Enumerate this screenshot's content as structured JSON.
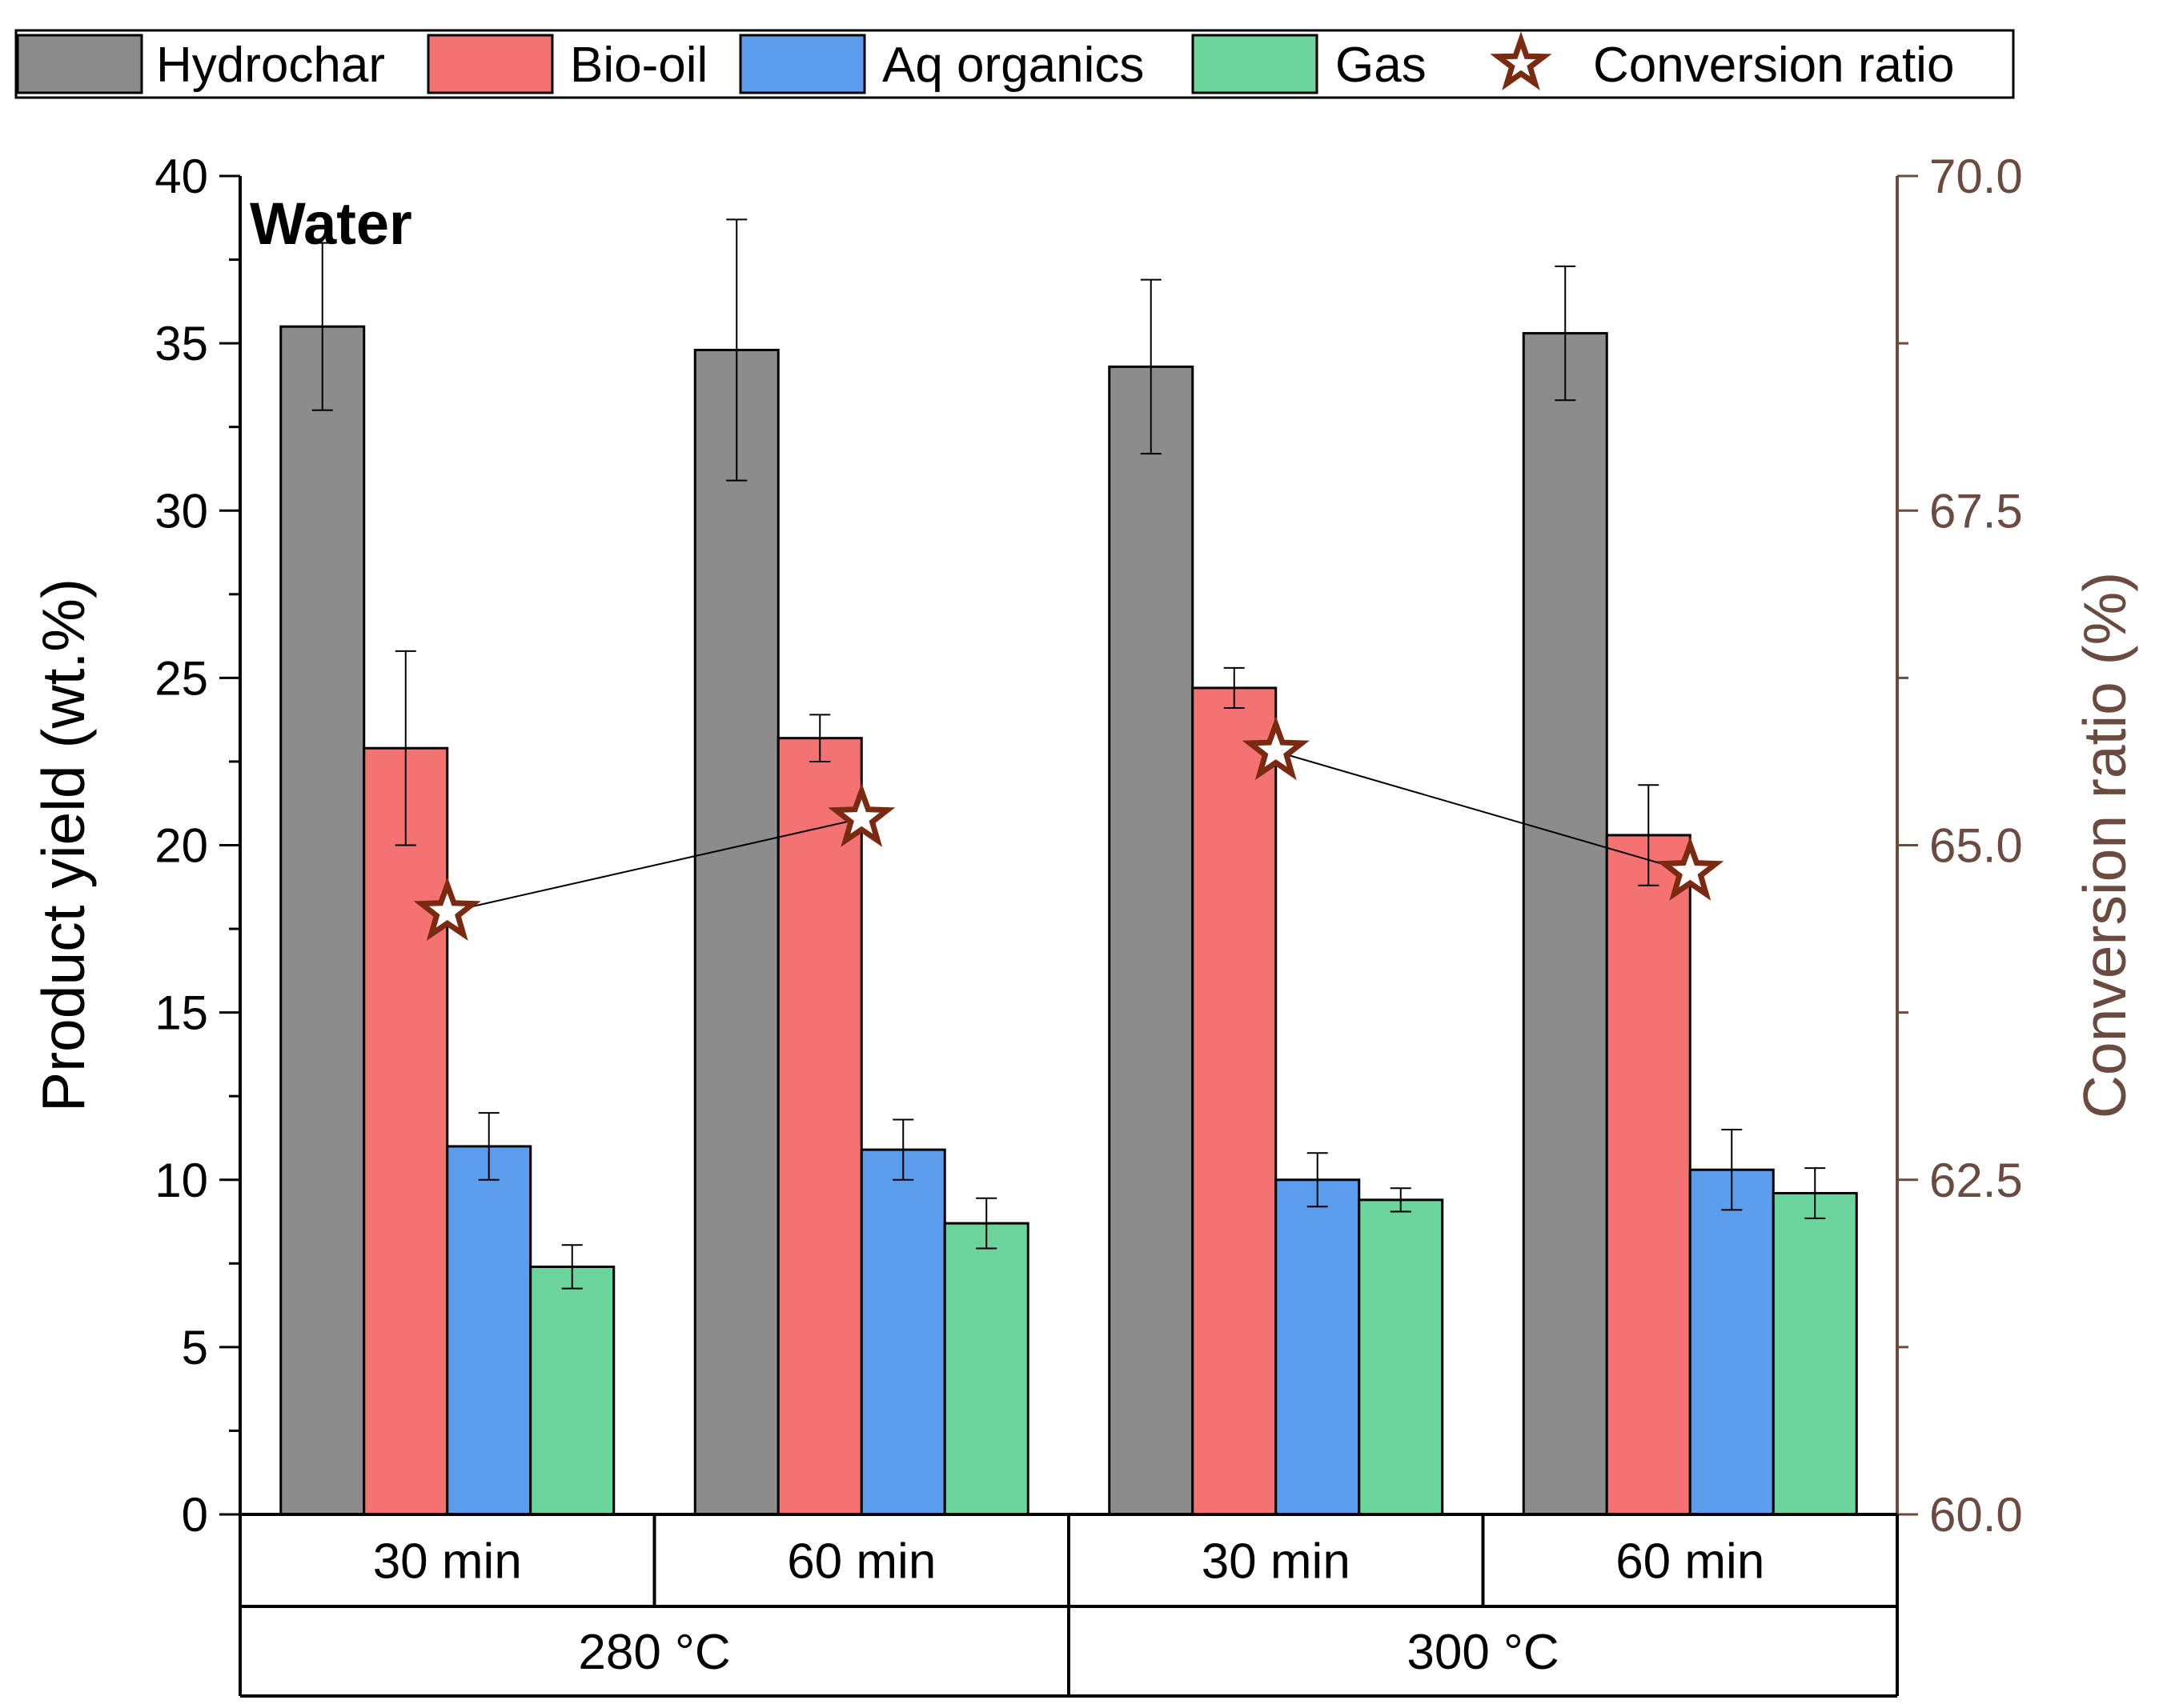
{
  "chart_data": {
    "type": "bar",
    "panel_label": "Water",
    "categories": [
      "30 min",
      "60 min",
      "30 min",
      "60 min"
    ],
    "groups": [
      {
        "label": "280 °C",
        "categories": [
          0,
          1
        ]
      },
      {
        "label": "300 °C",
        "categories": [
          2,
          3
        ]
      }
    ],
    "series": [
      {
        "name": "Hydrochar",
        "color": "#8c8c8c",
        "values": [
          35.5,
          34.8,
          34.3,
          35.3
        ],
        "errors": [
          2.5,
          3.9,
          2.6,
          2.0
        ]
      },
      {
        "name": "Bio-oil",
        "color": "#f47272",
        "values": [
          22.9,
          23.2,
          24.7,
          20.3
        ],
        "errors": [
          2.9,
          0.7,
          0.6,
          1.5
        ]
      },
      {
        "name": "Aq organics",
        "color": "#5b9cec",
        "values": [
          11.0,
          10.9,
          10.0,
          10.3
        ],
        "errors": [
          1.0,
          0.9,
          0.8,
          1.2
        ]
      },
      {
        "name": "Gas",
        "color": "#6bd59b",
        "values": [
          7.4,
          8.7,
          9.4,
          9.6
        ],
        "errors": [
          0.65,
          0.75,
          0.35,
          0.75
        ]
      }
    ],
    "line_series": {
      "name": "Conversion ratio",
      "color": "#7a2a10",
      "axis": "right",
      "values": [
        64.5,
        65.2,
        65.7,
        64.8
      ]
    },
    "ylabel": "Product yield (wt.%)",
    "ylim": [
      0,
      40
    ],
    "yticks": [
      "0",
      "5",
      "10",
      "15",
      "20",
      "25",
      "30",
      "35",
      "40"
    ],
    "y2label": "Conversion ratio (%)",
    "y2lim": [
      60.0,
      70.0
    ],
    "y2ticks": [
      "60.0",
      "62.5",
      "65.0",
      "67.5",
      "70.0"
    ],
    "right_axis_color": "#6b4a3f",
    "legend_position": "top"
  }
}
